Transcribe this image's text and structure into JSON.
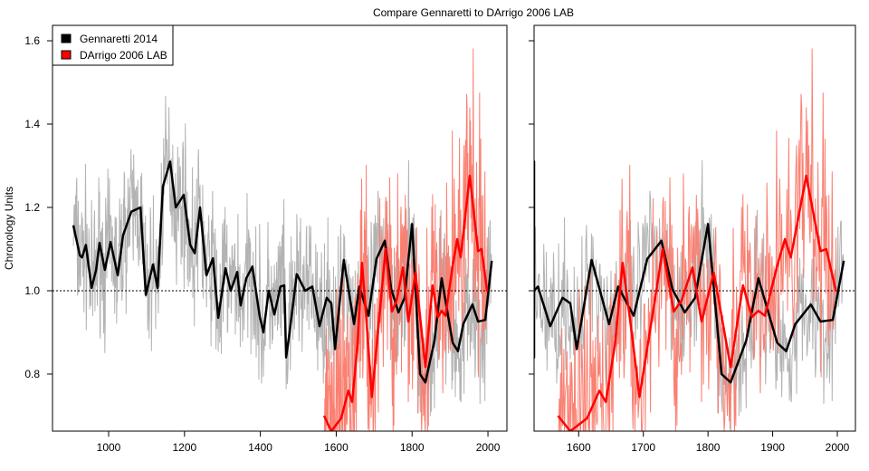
{
  "chart_data": [
    {
      "type": "line",
      "title": "Compare Gennaretti to DArrigo 2006 LAB",
      "xlabel": "",
      "ylabel": "Chronology Units",
      "xlim": [
        852,
        2050
      ],
      "ylim": [
        0.663,
        1.637
      ],
      "xticks": [
        "1000",
        "1200",
        "1400",
        "1600",
        "1800",
        "2000"
      ],
      "yticks": [
        "0.8",
        "1.0",
        "1.2",
        "1.4",
        "1.6"
      ],
      "reference_line": 1.0,
      "grid": false,
      "legend": "top-left",
      "series": [
        {
          "name": "Gennaretti 2014",
          "color": "#000000",
          "raw_color": "#b3b3b3",
          "x": [
            907,
            924,
            930,
            940,
            955,
            967,
            976,
            990,
            1005,
            1024,
            1038,
            1060,
            1084,
            1098,
            1117,
            1129,
            1143,
            1162,
            1177,
            1198,
            1215,
            1227,
            1241,
            1258,
            1275,
            1289,
            1308,
            1322,
            1339,
            1348,
            1363,
            1379,
            1398,
            1408,
            1422,
            1437,
            1453,
            1463,
            1468,
            1477,
            1496,
            1518,
            1537,
            1556,
            1575,
            1587,
            1597,
            1620,
            1647,
            1661,
            1685,
            1706,
            1728,
            1745,
            1764,
            1780,
            1800,
            1821,
            1835,
            1859,
            1878,
            1907,
            1921,
            1935,
            1959,
            1974,
            1993,
            2010
          ],
          "y": [
            1.157,
            1.085,
            1.08,
            1.11,
            1.007,
            1.05,
            1.115,
            1.05,
            1.117,
            1.037,
            1.133,
            1.19,
            1.2,
            0.99,
            1.063,
            1.007,
            1.25,
            1.31,
            1.2,
            1.23,
            1.11,
            1.09,
            1.2,
            1.037,
            1.078,
            0.935,
            1.054,
            1.0,
            1.045,
            0.965,
            1.03,
            1.058,
            0.94,
            0.9,
            1.0,
            0.943,
            1.01,
            1.013,
            0.84,
            0.9,
            1.04,
            1.0,
            1.01,
            0.915,
            0.983,
            0.97,
            0.86,
            1.074,
            0.92,
            1.01,
            0.94,
            1.076,
            1.12,
            1.004,
            0.948,
            0.983,
            1.16,
            0.8,
            0.78,
            0.88,
            1.03,
            0.875,
            0.855,
            0.92,
            0.967,
            0.926,
            0.93,
            1.072
          ]
        },
        {
          "name": "DArrigo 2006 LAB",
          "color": "#ff0000",
          "raw_color": "#fa8072",
          "x": [
            1568,
            1587,
            1613,
            1632,
            1642,
            1656,
            1668,
            1682,
            1694,
            1716,
            1730,
            1747,
            1759,
            1776,
            1790,
            1809,
            1835,
            1854,
            1868,
            1878,
            1888,
            1907,
            1919,
            1928,
            1952,
            1974,
            1983,
            1998
          ],
          "y": [
            0.7,
            0.66,
            0.694,
            0.76,
            0.733,
            0.87,
            1.067,
            0.9,
            0.745,
            0.96,
            1.1,
            0.95,
            0.976,
            1.056,
            0.926,
            1.043,
            0.817,
            1.013,
            0.937,
            0.952,
            0.94,
            1.06,
            1.124,
            1.08,
            1.276,
            1.095,
            1.1,
            0.998
          ]
        }
      ]
    },
    {
      "type": "line",
      "xlim": [
        1531,
        2028
      ],
      "ylim": [
        0.663,
        1.637
      ],
      "xticks": [
        "1600",
        "1700",
        "1800",
        "1900",
        "2000"
      ],
      "yticks_labeled": false,
      "reference_line": 1.0,
      "series_ref": "same as left panel, raw series drawn with smoothed overlay"
    }
  ]
}
